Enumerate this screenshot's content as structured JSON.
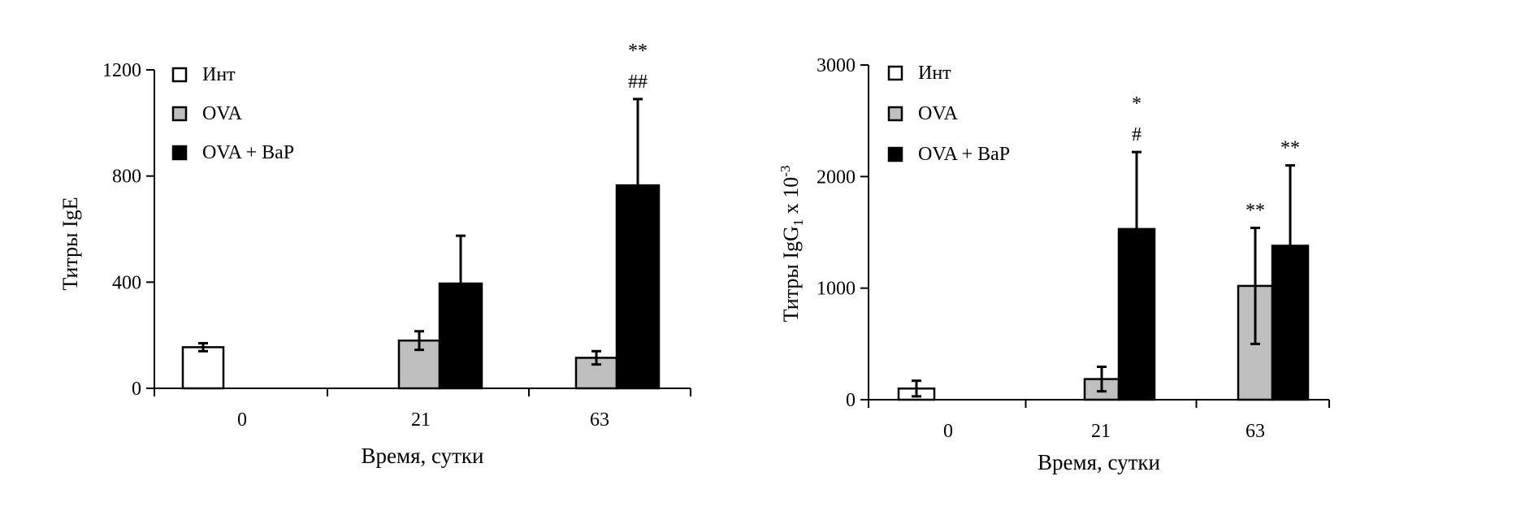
{
  "chart_data": [
    {
      "type": "bar",
      "categories": [
        "0",
        "21",
        "63"
      ],
      "series": [
        {
          "name": "Инт",
          "values": [
            155,
            null,
            null
          ],
          "errors": [
            15,
            null,
            null
          ]
        },
        {
          "name": "OVA",
          "values": [
            null,
            180,
            115
          ],
          "errors": [
            null,
            35,
            25
          ]
        },
        {
          "name": "OVA + BaP",
          "values": [
            null,
            395,
            765
          ],
          "errors": [
            null,
            180,
            325
          ]
        }
      ],
      "annotations": [
        {
          "category": "63",
          "series": "OVA + BaP",
          "labels": [
            "**",
            "##"
          ]
        }
      ],
      "xlabel": "Время, сутки",
      "ylabel": "Титры IgE",
      "ylabel_sub": "",
      "ylabel_tail": "",
      "ylabel_sup": "",
      "ylim": [
        0,
        1200
      ],
      "yticks": [
        "0",
        "400",
        "800",
        "1200"
      ],
      "legend": "top-left",
      "grid": false
    },
    {
      "type": "bar",
      "categories": [
        "0",
        "21",
        "63"
      ],
      "series": [
        {
          "name": "Инт",
          "values": [
            100,
            null,
            null
          ],
          "errors": [
            70,
            null,
            null
          ]
        },
        {
          "name": "OVA",
          "values": [
            null,
            185,
            1020
          ],
          "errors": [
            null,
            110,
            520
          ]
        },
        {
          "name": "OVA + BaP",
          "values": [
            null,
            1530,
            1380
          ],
          "errors": [
            null,
            690,
            720
          ]
        }
      ],
      "annotations": [
        {
          "category": "21",
          "series": "OVA + BaP",
          "labels": [
            "*",
            "#"
          ]
        },
        {
          "category": "63",
          "series": "OVA",
          "labels": [
            "**"
          ]
        },
        {
          "category": "63",
          "series": "OVA + BaP",
          "labels": [
            "**"
          ]
        }
      ],
      "xlabel": "Время, сутки",
      "ylabel": "Титры IgG",
      "ylabel_sub": "1",
      "ylabel_tail": " x 10",
      "ylabel_sup": "-3",
      "ylim": [
        0,
        3000
      ],
      "yticks": [
        "0",
        "1000",
        "2000",
        "3000"
      ],
      "legend": "top-left",
      "grid": false
    }
  ],
  "colors": {
    "Инт": "#ffffff",
    "OVA": "#bfbfbf",
    "OVA + BaP": "#000000"
  }
}
